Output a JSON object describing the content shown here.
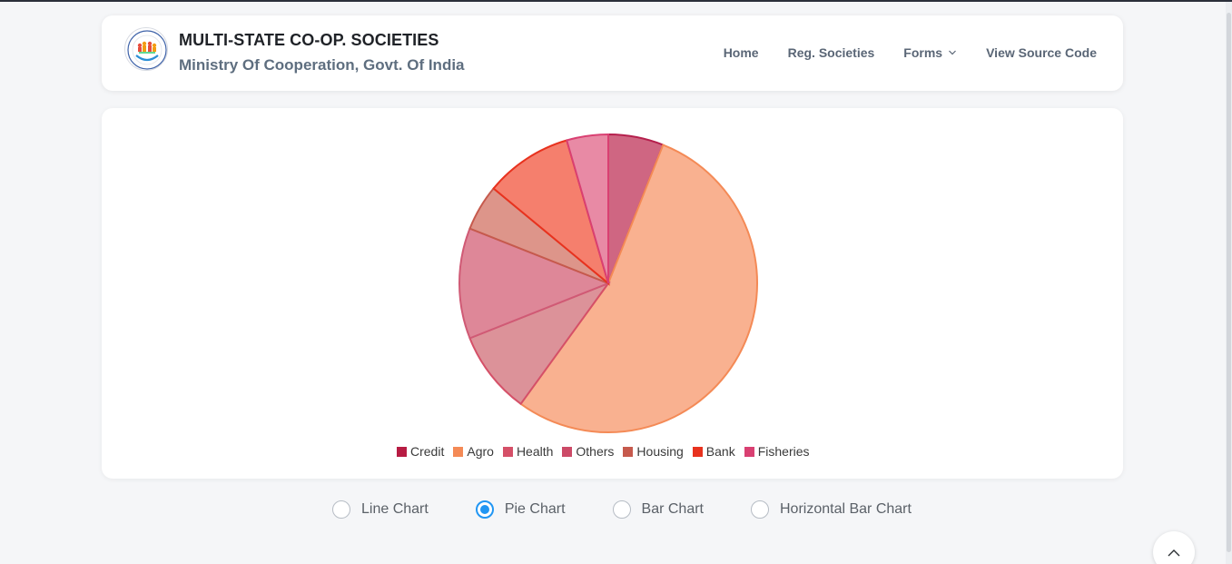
{
  "header": {
    "title": "MULTI-STATE CO-OP. SOCIETIES",
    "subtitle": "Ministry Of Cooperation, Govt. Of India",
    "logo_icon": "cooperative-logo-icon"
  },
  "nav": {
    "items": [
      {
        "label": "Home"
      },
      {
        "label": "Reg. Societies"
      },
      {
        "label": "Forms"
      },
      {
        "label": "View Source Code"
      }
    ]
  },
  "chart_data": {
    "type": "pie",
    "categories": [
      "Credit",
      "Agro",
      "Health",
      "Others",
      "Housing",
      "Bank",
      "Fisheries"
    ],
    "values": [
      6,
      54,
      9,
      12,
      5,
      9.5,
      4.5
    ],
    "colors": [
      "#cf6682",
      "#f9b190",
      "#dc9299",
      "#de8798",
      "#dd958a",
      "#f57f6d",
      "#e88aa5"
    ],
    "border_colors": [
      "#b5204d",
      "#f48a56",
      "#d55068",
      "#d05a75",
      "#c65a4d",
      "#e8321e",
      "#d94072"
    ],
    "legend_colors": [
      "#b71c43",
      "#f48a56",
      "#d55068",
      "#cc4a67",
      "#c65a4d",
      "#e8321e",
      "#d94072"
    ],
    "legend_position": "bottom"
  },
  "chart_options": {
    "items": [
      {
        "label": "Line Chart",
        "checked": false
      },
      {
        "label": "Pie Chart",
        "checked": true
      },
      {
        "label": "Bar Chart",
        "checked": false
      },
      {
        "label": "Horizontal Bar Chart",
        "checked": false
      }
    ]
  },
  "icons": {
    "chevron": "chevron-down-icon",
    "scroll_top": "chevron-up-icon"
  }
}
